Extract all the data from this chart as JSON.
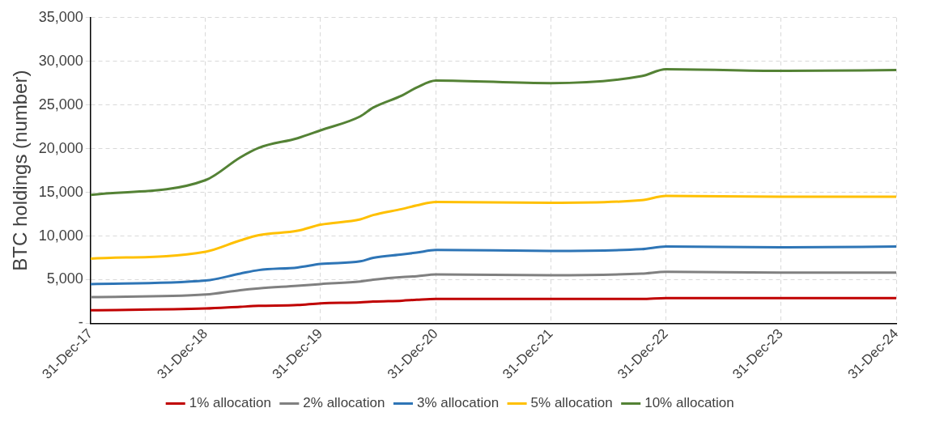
{
  "chart_data": {
    "type": "line",
    "ylabel": "BTC holdings (number)",
    "x": [
      "2017-12-31",
      "2018-12-31",
      "2019-04-20",
      "2019-06-18",
      "2019-10-19",
      "2019-12-31",
      "2020-05-05",
      "2020-06-15",
      "2020-09-15",
      "2020-10-31",
      "2020-12-31",
      "2021-12-31",
      "2022-10-15",
      "2022-12-31",
      "2023-12-31",
      "2024-12-31"
    ],
    "series": [
      {
        "name": "1% allocation",
        "color": "#c00000",
        "values": [
          1500,
          1700,
          1900,
          2000,
          2100,
          2300,
          2400,
          2500,
          2600,
          2700,
          2800,
          2800,
          2800,
          2900,
          2900,
          2900
        ]
      },
      {
        "name": "2% allocation",
        "color": "#808080",
        "values": [
          3000,
          3300,
          3800,
          4000,
          4300,
          4500,
          4800,
          5000,
          5300,
          5400,
          5600,
          5500,
          5700,
          5900,
          5800,
          5800
        ]
      },
      {
        "name": "3% allocation",
        "color": "#2e75b6",
        "values": [
          4500,
          4900,
          5700,
          6100,
          6400,
          6800,
          7100,
          7500,
          7900,
          8100,
          8400,
          8300,
          8500,
          8800,
          8700,
          8800
        ]
      },
      {
        "name": "5% allocation",
        "color": "#ffc000",
        "values": [
          7400,
          8200,
          9500,
          10100,
          10600,
          11300,
          11900,
          12400,
          13100,
          13500,
          13900,
          13800,
          14100,
          14600,
          14500,
          14500
        ]
      },
      {
        "name": "10% allocation",
        "color": "#548235",
        "values": [
          14700,
          16400,
          19000,
          20100,
          21200,
          22100,
          23700,
          24700,
          26100,
          27000,
          27800,
          27500,
          28300,
          29100,
          28900,
          29000
        ]
      }
    ],
    "xlim": [
      "2017-12-31",
      "2024-12-31"
    ],
    "xticks": [
      {
        "value": "2017-12-31",
        "label": "31-Dec-17"
      },
      {
        "value": "2018-12-31",
        "label": "31-Dec-18"
      },
      {
        "value": "2019-12-31",
        "label": "31-Dec-19"
      },
      {
        "value": "2020-12-31",
        "label": "31-Dec-20"
      },
      {
        "value": "2021-12-31",
        "label": "31-Dec-21"
      },
      {
        "value": "2022-12-31",
        "label": "31-Dec-22"
      },
      {
        "value": "2023-12-31",
        "label": "31-Dec-23"
      },
      {
        "value": "2024-12-31",
        "label": "31-Dec-24"
      }
    ],
    "ylim": [
      0,
      35000
    ],
    "yticks": [
      {
        "value": 0,
        "label": "-"
      },
      {
        "value": 5000,
        "label": "5,000"
      },
      {
        "value": 10000,
        "label": "10,000"
      },
      {
        "value": 15000,
        "label": "15,000"
      },
      {
        "value": 20000,
        "label": "20,000"
      },
      {
        "value": 25000,
        "label": "25,000"
      },
      {
        "value": 30000,
        "label": "30,000"
      },
      {
        "value": 35000,
        "label": "35,000"
      }
    ],
    "grid": true,
    "legend": "bottom",
    "marker": "none",
    "line_style": "solid"
  }
}
